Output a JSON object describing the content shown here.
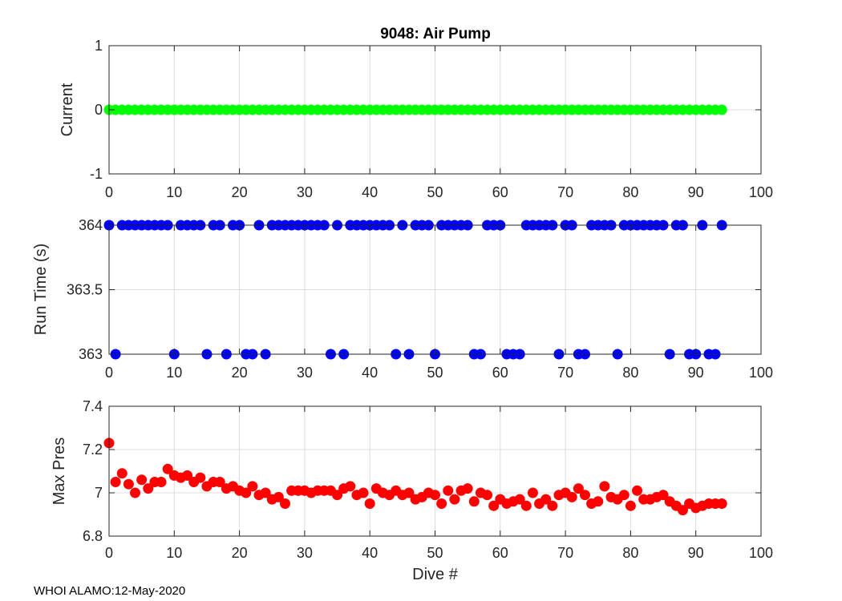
{
  "figure": {
    "title": "9048: Air Pump",
    "footer": "WHOI ALAMO:12-May-2020"
  },
  "colors": {
    "current": "#00ff00",
    "run_time": "#0000ff",
    "max_pres": "#ff0000"
  },
  "chart_data": [
    {
      "type": "scatter",
      "name": "current",
      "title": "9048: Air Pump",
      "xlabel": "",
      "ylabel": "Current",
      "xlim": [
        0,
        100
      ],
      "ylim": [
        -1,
        1
      ],
      "xticks": [
        0,
        10,
        20,
        30,
        40,
        50,
        60,
        70,
        80,
        90,
        100
      ],
      "yticks": [
        -1,
        0,
        1
      ],
      "ytick_labels": [
        "-1",
        "0",
        "1"
      ],
      "grid": true,
      "color": "#00ff00",
      "x": [
        0,
        1,
        2,
        3,
        4,
        5,
        6,
        7,
        8,
        9,
        10,
        11,
        12,
        13,
        14,
        15,
        16,
        17,
        18,
        19,
        20,
        21,
        22,
        23,
        24,
        25,
        26,
        27,
        28,
        29,
        30,
        31,
        32,
        33,
        34,
        35,
        36,
        37,
        38,
        39,
        40,
        41,
        42,
        43,
        44,
        45,
        46,
        47,
        48,
        49,
        50,
        51,
        52,
        53,
        54,
        55,
        56,
        57,
        58,
        59,
        60,
        61,
        62,
        63,
        64,
        65,
        66,
        67,
        68,
        69,
        70,
        71,
        72,
        73,
        74,
        75,
        76,
        77,
        78,
        79,
        80,
        81,
        82,
        83,
        84,
        85,
        86,
        87,
        88,
        89,
        90,
        91,
        92,
        93,
        94
      ],
      "y": [
        0,
        0,
        0,
        0,
        0,
        0,
        0,
        0,
        0,
        0,
        0,
        0,
        0,
        0,
        0,
        0,
        0,
        0,
        0,
        0,
        0,
        0,
        0,
        0,
        0,
        0,
        0,
        0,
        0,
        0,
        0,
        0,
        0,
        0,
        0,
        0,
        0,
        0,
        0,
        0,
        0,
        0,
        0,
        0,
        0,
        0,
        0,
        0,
        0,
        0,
        0,
        0,
        0,
        0,
        0,
        0,
        0,
        0,
        0,
        0,
        0,
        0,
        0,
        0,
        0,
        0,
        0,
        0,
        0,
        0,
        0,
        0,
        0,
        0,
        0,
        0,
        0,
        0,
        0,
        0,
        0,
        0,
        0,
        0,
        0,
        0,
        0,
        0,
        0,
        0,
        0,
        0,
        0,
        0,
        0
      ]
    },
    {
      "type": "scatter",
      "name": "run_time",
      "xlabel": "",
      "ylabel": "Run Time (s)",
      "xlim": [
        0,
        100
      ],
      "ylim": [
        363,
        364
      ],
      "xticks": [
        0,
        10,
        20,
        30,
        40,
        50,
        60,
        70,
        80,
        90,
        100
      ],
      "yticks": [
        363,
        363.5,
        364
      ],
      "ytick_labels": [
        "363",
        "363.5",
        "364"
      ],
      "grid": true,
      "color": "#0000ff",
      "x": [
        0,
        1,
        2,
        3,
        4,
        5,
        6,
        7,
        8,
        9,
        10,
        11,
        12,
        13,
        14,
        15,
        16,
        17,
        18,
        19,
        20,
        21,
        22,
        23,
        24,
        25,
        26,
        27,
        28,
        29,
        30,
        31,
        32,
        33,
        34,
        35,
        36,
        37,
        38,
        39,
        40,
        41,
        42,
        43,
        44,
        45,
        46,
        47,
        48,
        49,
        50,
        51,
        52,
        53,
        54,
        55,
        56,
        57,
        58,
        59,
        60,
        61,
        62,
        63,
        64,
        65,
        66,
        67,
        68,
        69,
        70,
        71,
        72,
        73,
        74,
        75,
        76,
        77,
        78,
        79,
        80,
        81,
        82,
        83,
        84,
        85,
        86,
        87,
        88,
        89,
        90,
        91,
        92,
        93,
        94
      ],
      "y": [
        364,
        363,
        364,
        364,
        364,
        364,
        364,
        364,
        364,
        364,
        363,
        364,
        364,
        364,
        364,
        363,
        364,
        364,
        363,
        364,
        364,
        363,
        363,
        364,
        363,
        364,
        364,
        364,
        364,
        364,
        364,
        364,
        364,
        364,
        363,
        364,
        363,
        364,
        364,
        364,
        364,
        364,
        364,
        364,
        363,
        364,
        363,
        364,
        364,
        364,
        363,
        364,
        364,
        364,
        364,
        364,
        363,
        363,
        364,
        364,
        364,
        363,
        363,
        363,
        364,
        364,
        364,
        364,
        364,
        363,
        364,
        364,
        363,
        363,
        364,
        364,
        364,
        364,
        363,
        364,
        364,
        364,
        364,
        364,
        364,
        364,
        363,
        364,
        364,
        363,
        363,
        364,
        363,
        363,
        364
      ]
    },
    {
      "type": "scatter",
      "name": "max_pres",
      "xlabel": "Dive #",
      "ylabel": "Max Pres",
      "xlim": [
        0,
        100
      ],
      "ylim": [
        6.8,
        7.4
      ],
      "xticks": [
        0,
        10,
        20,
        30,
        40,
        50,
        60,
        70,
        80,
        90,
        100
      ],
      "yticks": [
        6.8,
        7,
        7.2,
        7.4
      ],
      "ytick_labels": [
        "6.8",
        "7",
        "7.2",
        "7.4"
      ],
      "grid": true,
      "color": "#ff0000",
      "x": [
        0,
        1,
        2,
        3,
        4,
        5,
        6,
        7,
        8,
        9,
        10,
        11,
        12,
        13,
        14,
        15,
        16,
        17,
        18,
        19,
        20,
        21,
        22,
        23,
        24,
        25,
        26,
        27,
        28,
        29,
        30,
        31,
        32,
        33,
        34,
        35,
        36,
        37,
        38,
        39,
        40,
        41,
        42,
        43,
        44,
        45,
        46,
        47,
        48,
        49,
        50,
        51,
        52,
        53,
        54,
        55,
        56,
        57,
        58,
        59,
        60,
        61,
        62,
        63,
        64,
        65,
        66,
        67,
        68,
        69,
        70,
        71,
        72,
        73,
        74,
        75,
        76,
        77,
        78,
        79,
        80,
        81,
        82,
        83,
        84,
        85,
        86,
        87,
        88,
        89,
        90,
        91,
        92,
        93,
        94
      ],
      "y": [
        7.23,
        7.05,
        7.09,
        7.04,
        7.0,
        7.06,
        7.02,
        7.05,
        7.05,
        7.11,
        7.08,
        7.07,
        7.08,
        7.05,
        7.07,
        7.03,
        7.05,
        7.05,
        7.02,
        7.03,
        7.01,
        7.0,
        7.03,
        6.99,
        7.0,
        6.97,
        6.98,
        6.95,
        7.01,
        7.01,
        7.01,
        7.0,
        7.01,
        7.01,
        7.01,
        6.99,
        7.02,
        7.03,
        6.99,
        7.0,
        6.95,
        7.02,
        7.0,
        6.99,
        7.01,
        6.99,
        7.0,
        6.97,
        6.98,
        7.0,
        6.99,
        6.95,
        7.01,
        6.97,
        7.01,
        7.02,
        6.96,
        7.0,
        6.99,
        6.94,
        6.97,
        6.95,
        6.96,
        6.97,
        6.94,
        7.0,
        6.95,
        6.97,
        6.94,
        6.99,
        7.0,
        6.98,
        7.02,
        6.99,
        6.95,
        6.96,
        7.03,
        6.98,
        6.97,
        6.99,
        6.94,
        7.01,
        6.97,
        6.97,
        6.98,
        6.99,
        6.96,
        6.94,
        6.92,
        6.95,
        6.93,
        6.94,
        6.95,
        6.95,
        6.95
      ]
    }
  ]
}
